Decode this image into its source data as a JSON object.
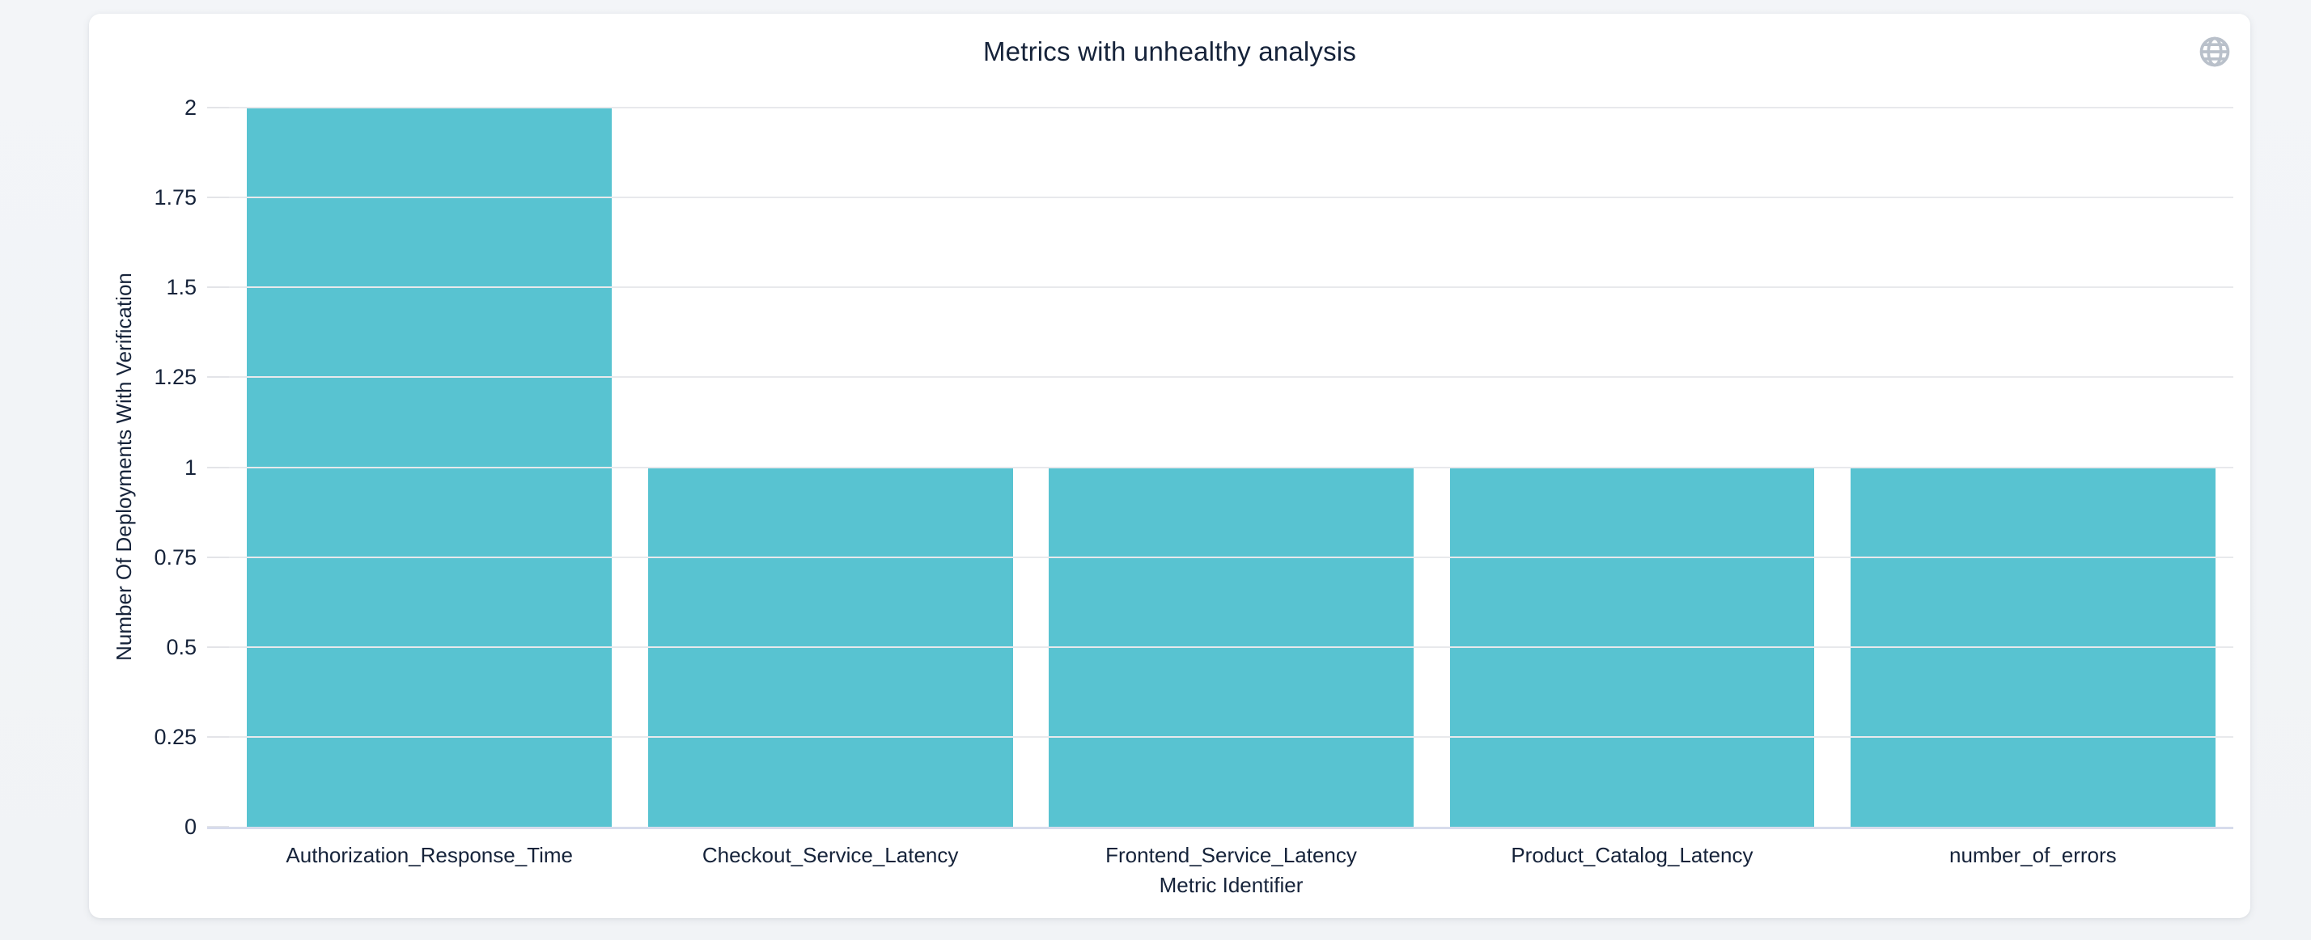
{
  "card": {
    "title": "Metrics with unhealthy analysis"
  },
  "icons": {
    "globe": "globe-icon"
  },
  "chart_data": {
    "type": "bar",
    "title": "Metrics with unhealthy analysis",
    "categories": [
      "Authorization_Response_Time",
      "Checkout_Service_Latency",
      "Frontend_Service_Latency",
      "Product_Catalog_Latency",
      "number_of_errors"
    ],
    "values": [
      2,
      1,
      1,
      1,
      1
    ],
    "xlabel": "Metric Identifier",
    "ylabel": "Number Of Deployments With Verification",
    "ylim": [
      0,
      2
    ],
    "yticks": [
      0,
      0.25,
      0.5,
      0.75,
      1,
      1.25,
      1.5,
      1.75,
      2
    ],
    "grid": true,
    "legend_position": "none",
    "bar_color": "#58c3d1",
    "gridline_color": "#e8e9ec",
    "axis_line_color": "#d7dcec",
    "text_color": "#16233a"
  }
}
